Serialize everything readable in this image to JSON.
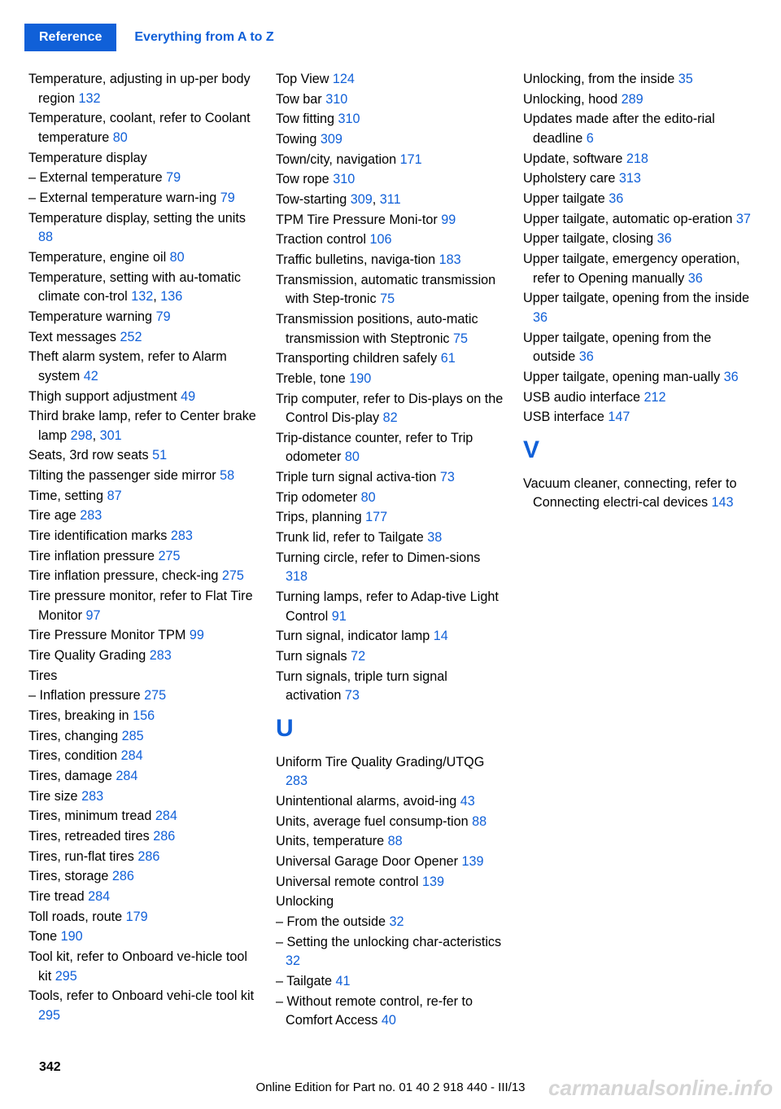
{
  "header": {
    "ref": "Reference",
    "title": "Everything from A to Z"
  },
  "page_number": "342",
  "footer": "Online Edition for Part no. 01 40 2 918 440 - III/13",
  "watermark": "carmanualsonline.info",
  "entries": [
    {
      "t": "Temperature, adjusting in up‐per body region ",
      "p": "132"
    },
    {
      "t": "Temperature, coolant, refer to Coolant temperature ",
      "p": "80"
    },
    {
      "t": "Temperature display",
      "p": ""
    },
    {
      "t": "– External temperature ",
      "p": "79"
    },
    {
      "t": "– External temperature warn‐ing ",
      "p": "79"
    },
    {
      "t": "Temperature display, setting the units ",
      "p": "88"
    },
    {
      "t": "Temperature, engine oil ",
      "p": "80"
    },
    {
      "t": "Temperature, setting with au‐tomatic climate con‐trol ",
      "p": "132, 136"
    },
    {
      "t": "Temperature warning ",
      "p": "79"
    },
    {
      "t": "Text messages ",
      "p": "252"
    },
    {
      "t": "Theft alarm system, refer to Alarm system ",
      "p": "42"
    },
    {
      "t": "Thigh support adjustment ",
      "p": "49"
    },
    {
      "t": "Third brake lamp, refer to Center brake lamp ",
      "p": "298, 301"
    },
    {
      "t": "Seats, 3rd row seats  ",
      "p": "51"
    },
    {
      "t": "Tilting the passenger side mirror ",
      "p": "58"
    },
    {
      "t": "Time, setting ",
      "p": "87"
    },
    {
      "t": "Tire age ",
      "p": "283"
    },
    {
      "t": "Tire identification marks ",
      "p": "283"
    },
    {
      "t": "Tire inflation pressure ",
      "p": "275"
    },
    {
      "t": "Tire inflation pressure, check‐ing ",
      "p": "275"
    },
    {
      "t": "Tire pressure monitor, refer to Flat Tire Monitor ",
      "p": "97"
    },
    {
      "t": "Tire Pressure Monitor TPM ",
      "p": "99"
    },
    {
      "t": "Tire Quality Grading ",
      "p": "283"
    },
    {
      "t": "Tires",
      "p": ""
    },
    {
      "t": "– Inflation pressure ",
      "p": "275"
    },
    {
      "t": "Tires, breaking in ",
      "p": "156"
    },
    {
      "t": "Tires, changing ",
      "p": "285"
    },
    {
      "t": "Tires, condition ",
      "p": "284"
    },
    {
      "t": "Tires, damage ",
      "p": "284"
    },
    {
      "t": "Tire size ",
      "p": "283"
    },
    {
      "t": "Tires, minimum tread ",
      "p": "284"
    },
    {
      "t": "Tires, retreaded tires ",
      "p": "286"
    },
    {
      "t": "Tires, run-flat tires ",
      "p": "286"
    },
    {
      "t": "Tires, storage ",
      "p": "286"
    },
    {
      "t": "Tire tread ",
      "p": "284"
    },
    {
      "t": "Toll roads, route ",
      "p": "179"
    },
    {
      "t": "Tone ",
      "p": "190"
    },
    {
      "t": "Tool kit, refer to Onboard ve‐hicle tool kit ",
      "p": "295"
    },
    {
      "t": "Tools, refer to Onboard vehi‐cle tool kit ",
      "p": "295"
    },
    {
      "t": "Top View ",
      "p": "124"
    },
    {
      "t": "Tow bar ",
      "p": "310"
    },
    {
      "t": "Tow fitting ",
      "p": "310"
    },
    {
      "t": "Towing ",
      "p": "309"
    },
    {
      "t": "Town/city, navigation ",
      "p": "171"
    },
    {
      "t": "Tow rope ",
      "p": "310"
    },
    {
      "t": "Tow-starting ",
      "p": "309, 311"
    },
    {
      "t": "TPM Tire Pressure Moni‐tor ",
      "p": "99"
    },
    {
      "t": "Traction control ",
      "p": "106"
    },
    {
      "t": "Traffic bulletins, naviga‐tion ",
      "p": "183"
    },
    {
      "t": "Transmission, automatic transmission with Step‐tronic ",
      "p": "75"
    },
    {
      "t": "Transmission positions, auto‐matic transmission with Steptronic ",
      "p": "75"
    },
    {
      "t": "Transporting children safely ",
      "p": "61"
    },
    {
      "t": "Treble, tone ",
      "p": "190"
    },
    {
      "t": "Trip computer, refer to Dis‐plays on the Control Dis‐play ",
      "p": "82"
    },
    {
      "t": "Trip-distance counter, refer to Trip odometer ",
      "p": "80"
    },
    {
      "t": "Triple turn signal activa‐tion ",
      "p": "73"
    },
    {
      "t": "Trip odometer ",
      "p": "80"
    },
    {
      "t": "Trips, planning ",
      "p": "177"
    },
    {
      "t": "Trunk lid, refer to Tailgate ",
      "p": "38"
    },
    {
      "t": "Turning circle, refer to Dimen‐sions ",
      "p": "318"
    },
    {
      "t": "Turning lamps, refer to Adap‐tive Light Control ",
      "p": "91"
    },
    {
      "t": "Turn signal, indicator lamp ",
      "p": "14"
    },
    {
      "t": "Turn signals ",
      "p": "72"
    },
    {
      "t": "Turn signals, triple turn signal activation ",
      "p": "73"
    },
    {
      "letter": "U"
    },
    {
      "t": "Uniform Tire Quality Grading/UTQG ",
      "p": "283"
    },
    {
      "t": "Unintentional alarms, avoid‐ing ",
      "p": "43"
    },
    {
      "t": "Units, average fuel consump‐tion ",
      "p": "88"
    },
    {
      "t": "Units, temperature ",
      "p": "88"
    },
    {
      "t": "Universal Garage Door Opener ",
      "p": "139"
    },
    {
      "t": "Universal remote control ",
      "p": "139"
    },
    {
      "t": "Unlocking",
      "p": ""
    },
    {
      "t": "– From the outside ",
      "p": "32"
    },
    {
      "t": "– Setting the unlocking char‐acteristics ",
      "p": "32"
    },
    {
      "t": "– Tailgate ",
      "p": "41"
    },
    {
      "t": "– Without remote control, re‐fer to Comfort Access ",
      "p": "40"
    },
    {
      "t": "Unlocking, from the inside ",
      "p": "35"
    },
    {
      "t": "Unlocking, hood ",
      "p": "289"
    },
    {
      "t": "Updates made after the edito‐rial deadline ",
      "p": "6"
    },
    {
      "t": "Update, software ",
      "p": "218"
    },
    {
      "t": "Upholstery care ",
      "p": "313"
    },
    {
      "t": "Upper tailgate ",
      "p": "36"
    },
    {
      "t": "Upper tailgate, automatic op‐eration ",
      "p": "37"
    },
    {
      "t": "Upper tailgate, closing ",
      "p": "36"
    },
    {
      "t": "Upper tailgate, emergency operation, refer to Opening manually ",
      "p": "36"
    },
    {
      "t": "Upper tailgate, opening from the inside ",
      "p": "36"
    },
    {
      "t": "Upper tailgate, opening from the outside ",
      "p": "36"
    },
    {
      "t": "Upper tailgate, opening man‐ually ",
      "p": "36"
    },
    {
      "t": "USB audio interface ",
      "p": "212"
    },
    {
      "t": "USB interface ",
      "p": "147"
    },
    {
      "letter": "V"
    },
    {
      "t": "Vacuum cleaner, connecting, refer to Connecting electri‐cal devices ",
      "p": "143"
    }
  ]
}
